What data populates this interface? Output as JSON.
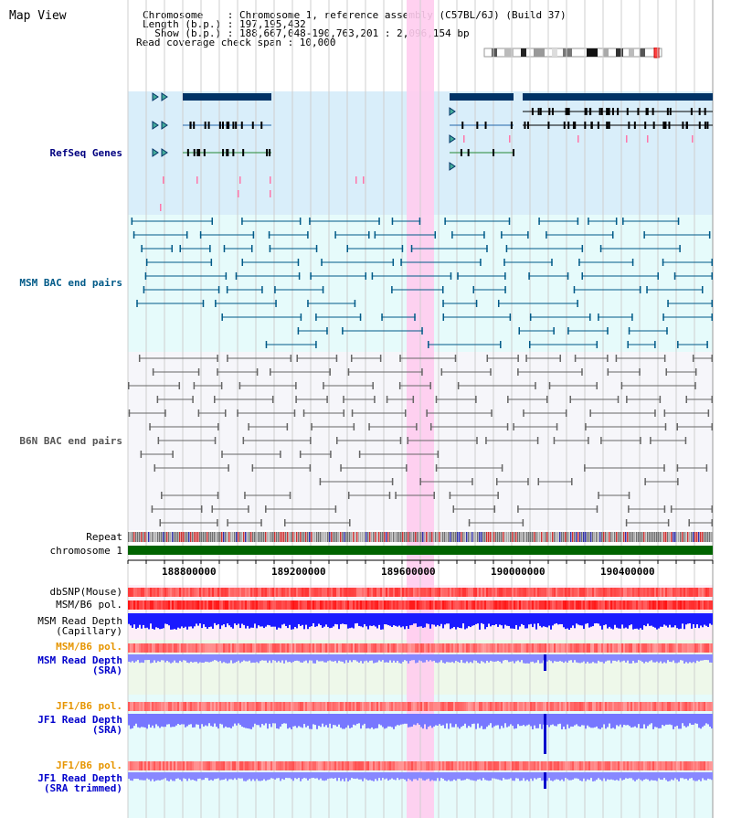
{
  "view_title": "Map View",
  "header": {
    "chromosome_line": "Chromosome    : Chromosome 1, reference assembly (C57BL/6J) (Build 37)",
    "length_line": "Length (b.p.) : 197,195,432",
    "show_line": "  Show (b.p.) : 188,667,048-190,763,201 : 2,096,154 bp",
    "coverage_line": "Read coverage check span : 10,000"
  },
  "tracks": {
    "refseq": {
      "label": "RefSeq Genes",
      "color": "#000080"
    },
    "msm_bac": {
      "label": "MSM BAC end pairs",
      "color": "#005a88"
    },
    "b6n_bac": {
      "label": "B6N BAC end pairs",
      "color": "#555555"
    },
    "repeat": {
      "label": "Repeat"
    },
    "chromosome": {
      "label": "chromosome 1",
      "color": "#006400"
    },
    "dbsnp": {
      "label": "dbSNP(Mouse)"
    },
    "msm_pol": {
      "label": "MSM/B6 pol."
    },
    "msm_cap": {
      "label": "MSM Read Depth\n(Capillary)",
      "color": "#0000cc"
    },
    "msm_pol2": {
      "label": "MSM/B6 pol.",
      "color": "#e69500"
    },
    "msm_sra": {
      "label": "MSM Read Depth\n(SRA)",
      "color": "#0000cc"
    },
    "jf1_pol": {
      "label": "JF1/B6 pol.",
      "color": "#e69500"
    },
    "jf1_sra": {
      "label": "JF1 Read Depth\n(SRA)",
      "color": "#0000cc"
    },
    "jf1_pol2": {
      "label": "JF1/B6 pol.",
      "color": "#e69500"
    },
    "jf1_trim": {
      "label": "JF1 Read Depth\n(SRA trimmed)",
      "color": "#0000cc"
    }
  },
  "axis": {
    "ticks": [
      "188800000",
      "189200000",
      "189600000",
      "190000000",
      "190400000"
    ]
  },
  "highlight_color": "#ffccee"
}
